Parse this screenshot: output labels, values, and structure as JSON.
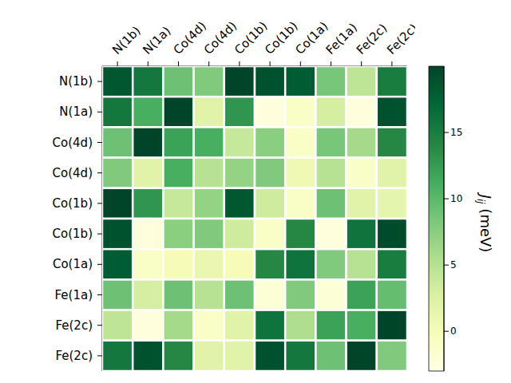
{
  "chart_data": {
    "type": "heatmap",
    "x_categories": [
      "N(1b)",
      "N(1a)",
      "Co(4d)",
      "Co(4d)",
      "Co(1b)",
      "Co(1b)",
      "Co(1a)",
      "Fe(1a)",
      "Fe(2c)",
      "Fe(2c)"
    ],
    "y_categories": [
      "N(1b)",
      "N(1a)",
      "Co(4d)",
      "Co(4d)",
      "Co(1b)",
      "Co(1b)",
      "Co(1a)",
      "Fe(1a)",
      "Fe(2c)",
      "Fe(2c)"
    ],
    "cells": [
      [
        18.5,
        15.5,
        9,
        8,
        20,
        19,
        18,
        8.5,
        4.5,
        15
      ],
      [
        15.5,
        11,
        20,
        2,
        13,
        -2.5,
        -1,
        3,
        -2.5,
        19
      ],
      [
        9,
        20,
        12,
        11,
        4,
        7.5,
        -1,
        8.5,
        6,
        14
      ],
      [
        8,
        2,
        11,
        5,
        7,
        8,
        0.5,
        5,
        -1,
        2
      ],
      [
        20,
        13,
        4,
        7,
        18.5,
        3.5,
        -1,
        9,
        2,
        1.5
      ],
      [
        19,
        -2.5,
        7.5,
        8,
        3.5,
        -1,
        14,
        -2.5,
        16,
        19.5
      ],
      [
        18,
        -1,
        0,
        1,
        0,
        14,
        16,
        8,
        5,
        15
      ],
      [
        9,
        3,
        9,
        5,
        9,
        -2,
        8,
        -2,
        12,
        9.5
      ],
      [
        4.5,
        -2.5,
        6,
        -1,
        2,
        16,
        5.5,
        12,
        11,
        20
      ],
      [
        15.5,
        19,
        14,
        2,
        2,
        19,
        15.5,
        9,
        20,
        8
      ]
    ],
    "colorbar_range": [
      -3,
      20
    ],
    "colorbar_ticks": [
      0,
      5,
      10,
      15
    ],
    "colorbar_label": {
      "symbol": "J",
      "subscript": "ij",
      "unit": "(meV)"
    }
  }
}
